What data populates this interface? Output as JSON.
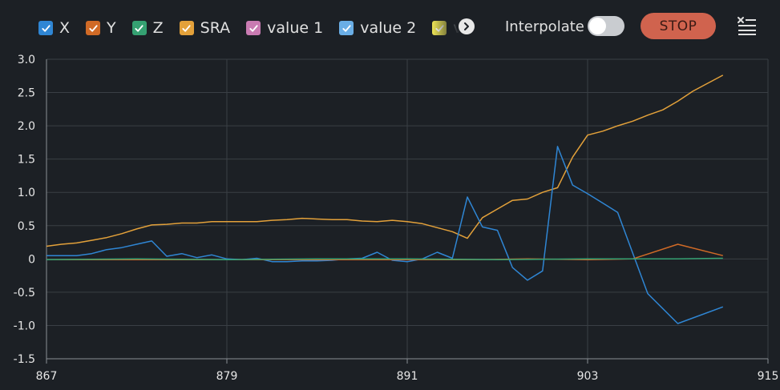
{
  "legend": [
    {
      "label": "X",
      "color": "#2f86d4"
    },
    {
      "label": "Y",
      "color": "#d06a26"
    },
    {
      "label": "Z",
      "color": "#35a172"
    },
    {
      "label": "SRA",
      "color": "#e3a13a"
    },
    {
      "label": "value 1",
      "color": "#c97bb2"
    },
    {
      "label": "value 2",
      "color": "#6aaee6"
    },
    {
      "label": "va",
      "color": "#e8df55"
    }
  ],
  "controls": {
    "interpolate_label": "Interpolate",
    "stop_label": "STOP"
  },
  "chart_data": {
    "type": "line",
    "xlim": [
      867,
      915
    ],
    "ylim": [
      -1.5,
      3.0
    ],
    "x_ticks": [
      867,
      879,
      891,
      903,
      915
    ],
    "y_ticks": [
      3.0,
      2.5,
      2.0,
      1.5,
      1.0,
      0.5,
      0,
      -0.5,
      -1.0,
      -1.5
    ],
    "y_tick_labels": [
      "3.0",
      "2.5",
      "2.0",
      "1.5",
      "1.0",
      "0.5",
      "0",
      "-0.5",
      "-1.0",
      "-1.5"
    ],
    "grid": true,
    "series": [
      {
        "name": "SRA",
        "color": "#e3a13a",
        "points": [
          [
            867,
            0.19
          ],
          [
            868,
            0.22
          ],
          [
            869,
            0.24
          ],
          [
            870,
            0.28
          ],
          [
            871,
            0.32
          ],
          [
            872,
            0.38
          ],
          [
            873,
            0.45
          ],
          [
            874,
            0.51
          ],
          [
            875,
            0.52
          ],
          [
            876,
            0.54
          ],
          [
            877,
            0.54
          ],
          [
            878,
            0.56
          ],
          [
            879,
            0.56
          ],
          [
            880,
            0.56
          ],
          [
            881,
            0.56
          ],
          [
            882,
            0.58
          ],
          [
            883,
            0.59
          ],
          [
            884,
            0.61
          ],
          [
            885,
            0.6
          ],
          [
            886,
            0.59
          ],
          [
            887,
            0.59
          ],
          [
            888,
            0.57
          ],
          [
            889,
            0.56
          ],
          [
            890,
            0.58
          ],
          [
            891,
            0.56
          ],
          [
            892,
            0.53
          ],
          [
            893,
            0.47
          ],
          [
            894,
            0.41
          ],
          [
            895,
            0.31
          ],
          [
            896,
            0.62
          ],
          [
            897,
            0.75
          ],
          [
            898,
            0.88
          ],
          [
            899,
            0.9
          ],
          [
            900,
            1.0
          ],
          [
            901,
            1.07
          ],
          [
            902,
            1.53
          ],
          [
            903,
            1.86
          ],
          [
            904,
            1.92
          ],
          [
            905,
            2.0
          ],
          [
            906,
            2.07
          ],
          [
            907,
            2.16
          ],
          [
            908,
            2.24
          ],
          [
            909,
            2.37
          ],
          [
            910,
            2.52
          ],
          [
            911,
            2.64
          ],
          [
            912,
            2.76
          ]
        ]
      },
      {
        "name": "X",
        "color": "#2f86d4",
        "points": [
          [
            867,
            0.05
          ],
          [
            868,
            0.05
          ],
          [
            869,
            0.05
          ],
          [
            870,
            0.08
          ],
          [
            871,
            0.14
          ],
          [
            872,
            0.17
          ],
          [
            873,
            0.22
          ],
          [
            874,
            0.27
          ],
          [
            875,
            0.04
          ],
          [
            876,
            0.08
          ],
          [
            877,
            0.02
          ],
          [
            878,
            0.06
          ],
          [
            879,
            0.0
          ],
          [
            880,
            -0.01
          ],
          [
            881,
            0.01
          ],
          [
            882,
            -0.04
          ],
          [
            883,
            -0.04
          ],
          [
            884,
            -0.03
          ],
          [
            885,
            -0.03
          ],
          [
            886,
            -0.02
          ],
          [
            887,
            0.0
          ],
          [
            888,
            0.01
          ],
          [
            889,
            0.1
          ],
          [
            890,
            -0.02
          ],
          [
            891,
            -0.04
          ],
          [
            892,
            0.0
          ],
          [
            893,
            0.1
          ],
          [
            894,
            0.01
          ],
          [
            895,
            0.93
          ],
          [
            896,
            0.48
          ],
          [
            897,
            0.43
          ],
          [
            898,
            -0.13
          ],
          [
            899,
            -0.32
          ],
          [
            900,
            -0.18
          ],
          [
            901,
            1.69
          ],
          [
            902,
            1.11
          ],
          [
            903,
            0.98
          ],
          [
            904,
            0.84
          ],
          [
            905,
            0.7
          ],
          [
            907,
            -0.52
          ],
          [
            909,
            -0.97
          ],
          [
            912,
            -0.72
          ]
        ]
      },
      {
        "name": "Y",
        "color": "#d06a26",
        "points": [
          [
            867,
            -0.01
          ],
          [
            872,
            -0.01
          ],
          [
            879,
            -0.01
          ],
          [
            885,
            -0.01
          ],
          [
            891,
            -0.01
          ],
          [
            896,
            -0.01
          ],
          [
            899,
            0.0
          ],
          [
            903,
            -0.01
          ],
          [
            906,
            0.0
          ],
          [
            909,
            0.22
          ],
          [
            912,
            0.05
          ]
        ]
      },
      {
        "name": "Z",
        "color": "#35a172",
        "points": [
          [
            867,
            -0.01
          ],
          [
            873,
            0.0
          ],
          [
            879,
            -0.01
          ],
          [
            885,
            0.0
          ],
          [
            891,
            0.0
          ],
          [
            897,
            -0.01
          ],
          [
            903,
            0.0
          ],
          [
            909,
            0.0
          ],
          [
            912,
            0.01
          ]
        ]
      }
    ]
  }
}
